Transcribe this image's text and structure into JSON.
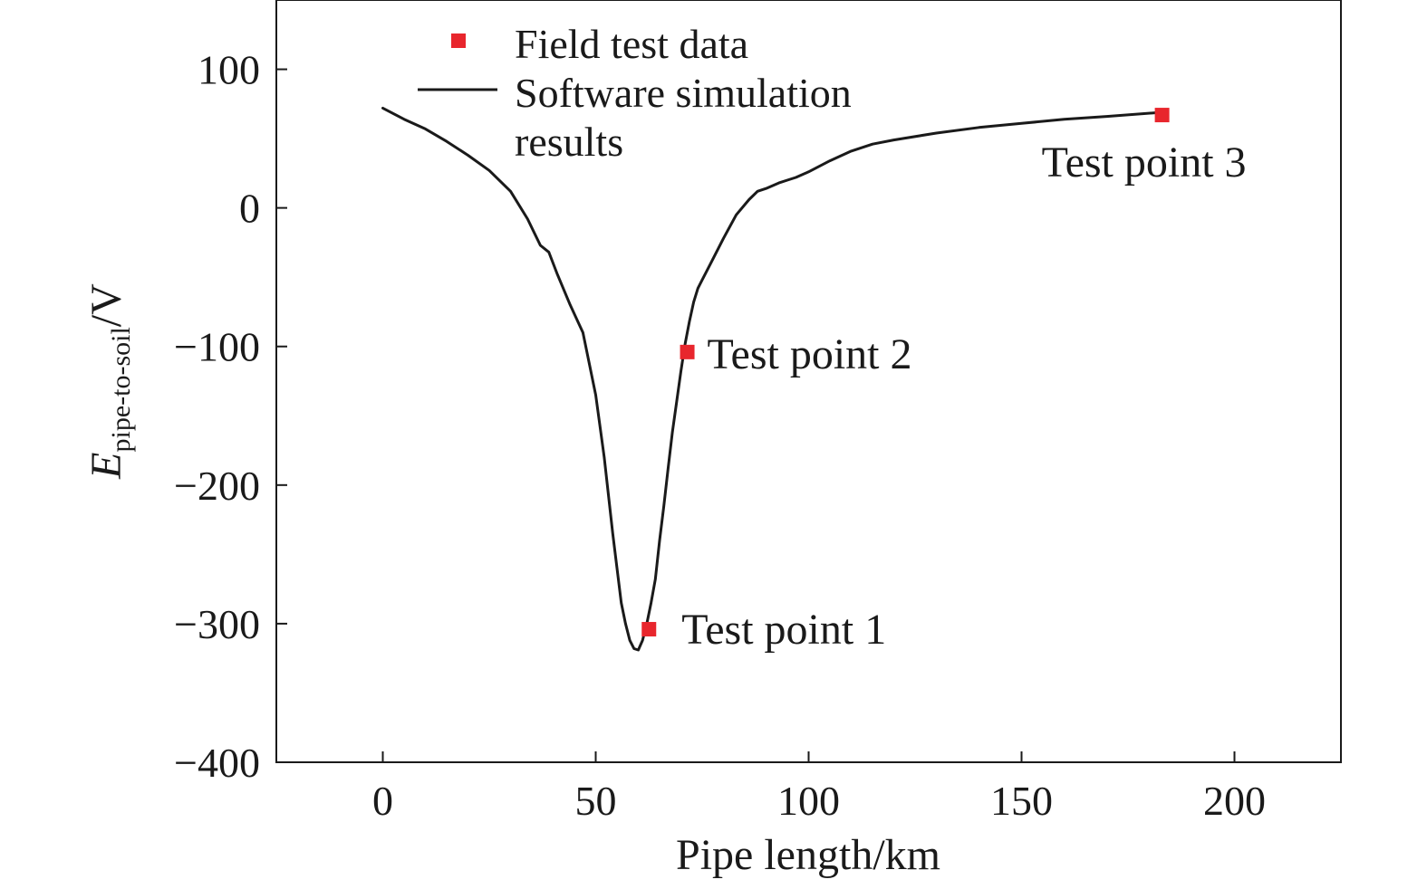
{
  "chart_data": {
    "type": "line",
    "xlabel": "Pipe length/km",
    "ylabel": {
      "main": "E",
      "subscript": "pipe-to-soil",
      "suffix": "/V"
    },
    "xlim": [
      -25,
      225
    ],
    "ylim": [
      -400,
      150
    ],
    "x_ticks": [
      0,
      50,
      100,
      150,
      200
    ],
    "y_ticks": [
      100,
      0,
      -100,
      -200,
      -300,
      -400
    ],
    "y_tick_labels": [
      "100",
      "0",
      "−100",
      "−200",
      "−300",
      "−400"
    ],
    "grid": false,
    "legend_position": "top-left",
    "series": [
      {
        "name": "Field test data",
        "kind": "scatter",
        "marker": "square",
        "color": "#e8262d",
        "x": [
          62.5,
          71.5,
          183
        ],
        "y": [
          -304,
          -104,
          67
        ]
      },
      {
        "name": "Software simulation results",
        "kind": "line",
        "color": "#1a1a1a",
        "x": [
          0,
          5,
          10,
          15,
          20,
          25,
          30,
          34,
          37,
          39,
          41,
          44,
          47,
          50,
          52,
          54,
          55,
          56,
          57,
          58,
          59,
          60,
          61,
          62,
          63,
          64,
          65,
          66,
          67,
          68,
          69,
          70,
          71,
          72,
          73,
          74,
          75,
          77,
          80,
          83,
          86,
          88,
          90,
          93,
          95,
          97,
          100,
          105,
          110,
          115,
          120,
          130,
          140,
          150,
          160,
          170,
          183
        ],
        "y": [
          72,
          64,
          57,
          48,
          38,
          27,
          12,
          -8,
          -27,
          -32,
          -48,
          -70,
          -90,
          -135,
          -180,
          -235,
          -260,
          -285,
          -300,
          -312,
          -318,
          -319,
          -312,
          -300,
          -285,
          -268,
          -240,
          -215,
          -188,
          -162,
          -140,
          -118,
          -98,
          -82,
          -68,
          -58,
          -52,
          -40,
          -22,
          -5,
          6,
          12,
          14,
          18,
          20,
          22,
          26,
          34,
          41,
          46,
          49,
          54,
          58,
          61,
          64,
          66,
          69
        ]
      }
    ],
    "annotations": [
      {
        "text": "Test point 1",
        "x": 62.5,
        "y": -304
      },
      {
        "text": "Test point 2",
        "x": 71.5,
        "y": -104
      },
      {
        "text": "Test point 3",
        "x": 183,
        "y": 67
      }
    ],
    "legend": {
      "entries": [
        {
          "series": 0,
          "lines": [
            "Field test data"
          ]
        },
        {
          "series": 1,
          "lines": [
            "Software simulation",
            "results"
          ]
        }
      ]
    }
  }
}
